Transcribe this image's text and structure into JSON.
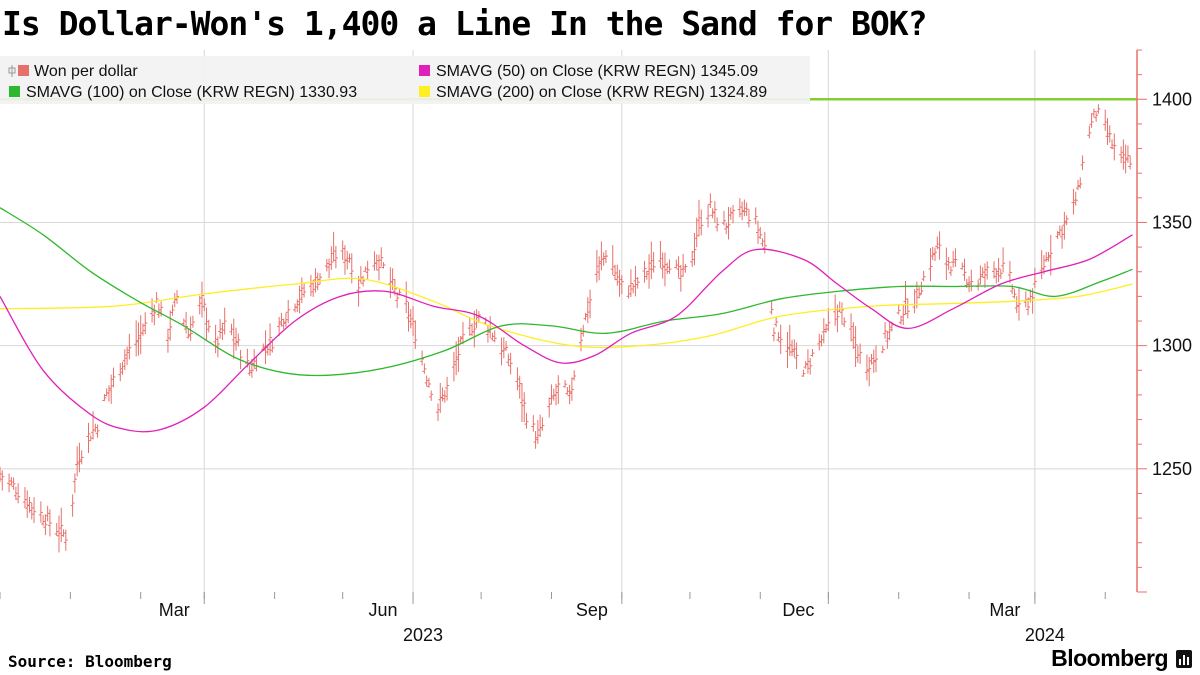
{
  "title": "Is Dollar-Won's 1,400 a Line In the Sand for BOK?",
  "source": "Source: Bloomberg",
  "brand": "Bloomberg",
  "brand_icon": "bloomberg-terminal-icon",
  "colors": {
    "price": "#e8706a",
    "sma50": "#e020b8",
    "sma100": "#2eb82e",
    "sma200": "#ffee22",
    "ref_line": "#88cc33",
    "axis": "#e8706a",
    "grid": "#d8d8d8"
  },
  "chart_data": {
    "type": "line",
    "title": "Is Dollar-Won's 1,400 a Line In the Sand for BOK?",
    "ylim": [
      1200,
      1420
    ],
    "yticks": [
      1250,
      1300,
      1350,
      1400
    ],
    "ytick_labels": [
      "1250",
      "1300",
      "1350",
      "1400"
    ],
    "x_range": [
      "2022-12-01",
      "2024-04-15"
    ],
    "xticks": [
      {
        "date": "2023-03-01",
        "label": "Mar"
      },
      {
        "date": "2023-06-01",
        "label": "Jun"
      },
      {
        "date": "2023-09-01",
        "label": "Sep"
      },
      {
        "date": "2023-12-01",
        "label": "Dec"
      },
      {
        "date": "2024-03-01",
        "label": "Mar"
      }
    ],
    "year_labels": [
      {
        "date": "2023-06-01",
        "label": "2023"
      },
      {
        "date": "2024-03-01",
        "label": "2024"
      }
    ],
    "reference_line": 1400,
    "legend": [
      {
        "name": "Won per dollar",
        "value": ""
      },
      {
        "name": "SMAVG (50)  on Close (KRW REGN)",
        "value": "1345.09"
      },
      {
        "name": "SMAVG (100)  on Close (KRW REGN)",
        "value": "1330.93"
      },
      {
        "name": "SMAVG (200)  on Close (KRW REGN)",
        "value": "1324.89"
      }
    ],
    "price_anchors": [
      [
        "2022-12-01",
        1248
      ],
      [
        "2022-12-08",
        1242
      ],
      [
        "2022-12-15",
        1235
      ],
      [
        "2022-12-21",
        1230
      ],
      [
        "2022-12-26",
        1226
      ],
      [
        "2022-12-31",
        1222
      ],
      [
        "2023-01-04",
        1253
      ],
      [
        "2023-01-08",
        1262
      ],
      [
        "2023-01-13",
        1268
      ],
      [
        "2023-01-17",
        1280
      ],
      [
        "2023-01-22",
        1290
      ],
      [
        "2023-01-26",
        1297
      ],
      [
        "2023-01-31",
        1303
      ],
      [
        "2023-02-04",
        1310
      ],
      [
        "2023-02-08",
        1318
      ],
      [
        "2023-02-13",
        1305
      ],
      [
        "2023-02-17",
        1320
      ],
      [
        "2023-02-22",
        1305
      ],
      [
        "2023-02-28",
        1318
      ],
      [
        "2023-03-06",
        1300
      ],
      [
        "2023-03-11",
        1310
      ],
      [
        "2023-03-16",
        1300
      ],
      [
        "2023-03-21",
        1290
      ],
      [
        "2023-03-26",
        1298
      ],
      [
        "2023-03-31",
        1302
      ],
      [
        "2023-04-05",
        1312
      ],
      [
        "2023-04-10",
        1318
      ],
      [
        "2023-04-14",
        1322
      ],
      [
        "2023-04-19",
        1326
      ],
      [
        "2023-04-24",
        1332
      ],
      [
        "2023-04-29",
        1338
      ],
      [
        "2023-05-04",
        1336
      ],
      [
        "2023-05-08",
        1325
      ],
      [
        "2023-05-12",
        1332
      ],
      [
        "2023-05-16",
        1336
      ],
      [
        "2023-05-20",
        1330
      ],
      [
        "2023-05-25",
        1320
      ],
      [
        "2023-05-29",
        1316
      ],
      [
        "2023-06-02",
        1305
      ],
      [
        "2023-06-07",
        1288
      ],
      [
        "2023-06-12",
        1275
      ],
      [
        "2023-06-17",
        1285
      ],
      [
        "2023-06-22",
        1300
      ],
      [
        "2023-06-27",
        1308
      ],
      [
        "2023-07-01",
        1312
      ],
      [
        "2023-07-06",
        1305
      ],
      [
        "2023-07-11",
        1298
      ],
      [
        "2023-07-16",
        1290
      ],
      [
        "2023-07-21",
        1272
      ],
      [
        "2023-07-26",
        1262
      ],
      [
        "2023-07-31",
        1275
      ],
      [
        "2023-08-05",
        1285
      ],
      [
        "2023-08-09",
        1278
      ],
      [
        "2023-08-13",
        1300
      ],
      [
        "2023-08-17",
        1315
      ],
      [
        "2023-08-21",
        1330
      ],
      [
        "2023-08-25",
        1338
      ],
      [
        "2023-08-29",
        1330
      ],
      [
        "2023-09-02",
        1322
      ],
      [
        "2023-09-07",
        1325
      ],
      [
        "2023-09-12",
        1330
      ],
      [
        "2023-09-17",
        1336
      ],
      [
        "2023-09-22",
        1334
      ],
      [
        "2023-09-27",
        1328
      ],
      [
        "2023-10-01",
        1332
      ],
      [
        "2023-10-05",
        1350
      ],
      [
        "2023-10-10",
        1356
      ],
      [
        "2023-10-15",
        1348
      ],
      [
        "2023-10-20",
        1352
      ],
      [
        "2023-10-25",
        1355
      ],
      [
        "2023-10-30",
        1350
      ],
      [
        "2023-11-03",
        1340
      ],
      [
        "2023-11-07",
        1308
      ],
      [
        "2023-11-12",
        1302
      ],
      [
        "2023-11-16",
        1296
      ],
      [
        "2023-11-21",
        1290
      ],
      [
        "2023-11-26",
        1300
      ],
      [
        "2023-11-30",
        1305
      ],
      [
        "2023-12-04",
        1315
      ],
      [
        "2023-12-08",
        1312
      ],
      [
        "2023-12-13",
        1300
      ],
      [
        "2023-12-17",
        1292
      ],
      [
        "2023-12-21",
        1295
      ],
      [
        "2023-12-26",
        1303
      ],
      [
        "2023-12-31",
        1310
      ],
      [
        "2024-01-04",
        1316
      ],
      [
        "2024-01-09",
        1320
      ],
      [
        "2024-01-13",
        1330
      ],
      [
        "2024-01-18",
        1340
      ],
      [
        "2024-01-22",
        1335
      ],
      [
        "2024-01-26",
        1332
      ],
      [
        "2024-01-31",
        1328
      ],
      [
        "2024-02-04",
        1325
      ],
      [
        "2024-02-09",
        1330
      ],
      [
        "2024-02-14",
        1332
      ],
      [
        "2024-02-18",
        1330
      ],
      [
        "2024-02-23",
        1314
      ],
      [
        "2024-02-27",
        1318
      ],
      [
        "2024-03-02",
        1325
      ],
      [
        "2024-03-07",
        1338
      ],
      [
        "2024-03-11",
        1345
      ],
      [
        "2024-03-16",
        1352
      ],
      [
        "2024-03-20",
        1362
      ],
      [
        "2024-03-24",
        1385
      ],
      [
        "2024-03-28",
        1395
      ],
      [
        "2024-04-01",
        1388
      ],
      [
        "2024-04-05",
        1380
      ],
      [
        "2024-04-09",
        1375
      ],
      [
        "2024-04-13",
        1376
      ]
    ],
    "sma50": [
      [
        "2022-12-01",
        1320
      ],
      [
        "2022-12-20",
        1290
      ],
      [
        "2023-01-10",
        1272
      ],
      [
        "2023-01-25",
        1266
      ],
      [
        "2023-02-10",
        1266
      ],
      [
        "2023-03-01",
        1275
      ],
      [
        "2023-03-20",
        1292
      ],
      [
        "2023-04-10",
        1310
      ],
      [
        "2023-04-30",
        1320
      ],
      [
        "2023-05-20",
        1322
      ],
      [
        "2023-06-10",
        1316
      ],
      [
        "2023-06-30",
        1312
      ],
      [
        "2023-07-20",
        1300
      ],
      [
        "2023-08-05",
        1293
      ],
      [
        "2023-08-20",
        1296
      ],
      [
        "2023-09-05",
        1305
      ],
      [
        "2023-09-25",
        1312
      ],
      [
        "2023-10-15",
        1330
      ],
      [
        "2023-10-30",
        1339
      ],
      [
        "2023-11-20",
        1335
      ],
      [
        "2023-12-05",
        1325
      ],
      [
        "2023-12-20",
        1315
      ],
      [
        "2024-01-05",
        1307
      ],
      [
        "2024-01-25",
        1315
      ],
      [
        "2024-02-15",
        1325
      ],
      [
        "2024-03-05",
        1330
      ],
      [
        "2024-03-25",
        1335
      ],
      [
        "2024-04-13",
        1345
      ]
    ],
    "sma100": [
      [
        "2022-12-01",
        1356
      ],
      [
        "2022-12-20",
        1345
      ],
      [
        "2023-01-10",
        1330
      ],
      [
        "2023-01-31",
        1318
      ],
      [
        "2023-02-20",
        1308
      ],
      [
        "2023-03-15",
        1295
      ],
      [
        "2023-04-05",
        1289
      ],
      [
        "2023-04-25",
        1288
      ],
      [
        "2023-05-20",
        1291
      ],
      [
        "2023-06-15",
        1298
      ],
      [
        "2023-07-10",
        1308
      ],
      [
        "2023-08-01",
        1308
      ],
      [
        "2023-08-25",
        1305
      ],
      [
        "2023-09-20",
        1310
      ],
      [
        "2023-10-15",
        1313
      ],
      [
        "2023-11-10",
        1319
      ],
      [
        "2023-12-05",
        1322
      ],
      [
        "2024-01-01",
        1324
      ],
      [
        "2024-01-25",
        1324
      ],
      [
        "2024-02-20",
        1324
      ],
      [
        "2024-03-10",
        1320
      ],
      [
        "2024-03-30",
        1326
      ],
      [
        "2024-04-13",
        1331
      ]
    ],
    "sma200": [
      [
        "2022-12-01",
        1315
      ],
      [
        "2023-01-20",
        1316
      ],
      [
        "2023-03-01",
        1321
      ],
      [
        "2023-04-10",
        1325
      ],
      [
        "2023-05-10",
        1327
      ],
      [
        "2023-06-10",
        1318
      ],
      [
        "2023-07-05",
        1308
      ],
      [
        "2023-08-10",
        1300
      ],
      [
        "2023-09-10",
        1300
      ],
      [
        "2023-10-10",
        1304
      ],
      [
        "2023-11-10",
        1312
      ],
      [
        "2023-12-20",
        1316
      ],
      [
        "2024-01-20",
        1317
      ],
      [
        "2024-02-20",
        1318
      ],
      [
        "2024-03-20",
        1320
      ],
      [
        "2024-04-13",
        1325
      ]
    ]
  }
}
